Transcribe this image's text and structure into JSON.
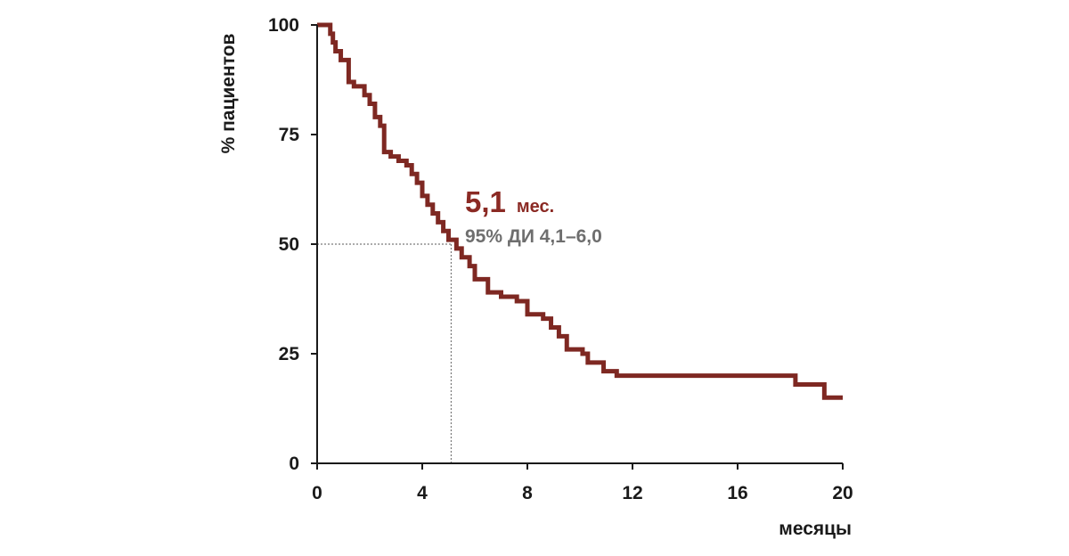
{
  "chart_data": {
    "type": "line",
    "step": true,
    "xlabel": "месяцы",
    "ylabel": "% пациентов",
    "xlim": [
      0,
      20
    ],
    "ylim": [
      0,
      100
    ],
    "xticks": [
      0,
      4,
      8,
      12,
      16,
      20
    ],
    "yticks": [
      0,
      25,
      50,
      75,
      100
    ],
    "grid": false,
    "series": [
      {
        "color": "#7e2822",
        "points": [
          [
            0.0,
            100
          ],
          [
            0.4,
            100
          ],
          [
            0.5,
            98
          ],
          [
            0.6,
            96
          ],
          [
            0.7,
            94
          ],
          [
            0.9,
            92
          ],
          [
            1.2,
            87
          ],
          [
            1.4,
            86
          ],
          [
            1.8,
            84
          ],
          [
            2.0,
            82
          ],
          [
            2.2,
            79
          ],
          [
            2.4,
            77
          ],
          [
            2.55,
            71
          ],
          [
            2.8,
            70
          ],
          [
            3.1,
            69
          ],
          [
            3.4,
            68
          ],
          [
            3.6,
            66
          ],
          [
            3.8,
            64
          ],
          [
            4.0,
            61
          ],
          [
            4.2,
            59
          ],
          [
            4.4,
            57
          ],
          [
            4.6,
            55
          ],
          [
            4.8,
            53
          ],
          [
            5.0,
            51
          ],
          [
            5.3,
            49
          ],
          [
            5.5,
            47
          ],
          [
            5.8,
            45
          ],
          [
            6.0,
            42
          ],
          [
            6.5,
            39
          ],
          [
            7.0,
            38
          ],
          [
            7.6,
            37
          ],
          [
            8.0,
            34
          ],
          [
            8.6,
            33
          ],
          [
            8.9,
            31
          ],
          [
            9.2,
            29
          ],
          [
            9.5,
            26
          ],
          [
            10.1,
            25
          ],
          [
            10.3,
            23
          ],
          [
            10.9,
            21
          ],
          [
            11.4,
            20
          ],
          [
            18.2,
            18
          ],
          [
            19.3,
            15
          ],
          [
            20.0,
            15
          ]
        ]
      }
    ],
    "median": {
      "x": 5.1,
      "y": 50,
      "value": "5,1",
      "unit": "мес.",
      "ci": "95% ДИ 4,1–6,0",
      "color": "#8b2a24",
      "ci_color": "#6e6e6e"
    }
  }
}
